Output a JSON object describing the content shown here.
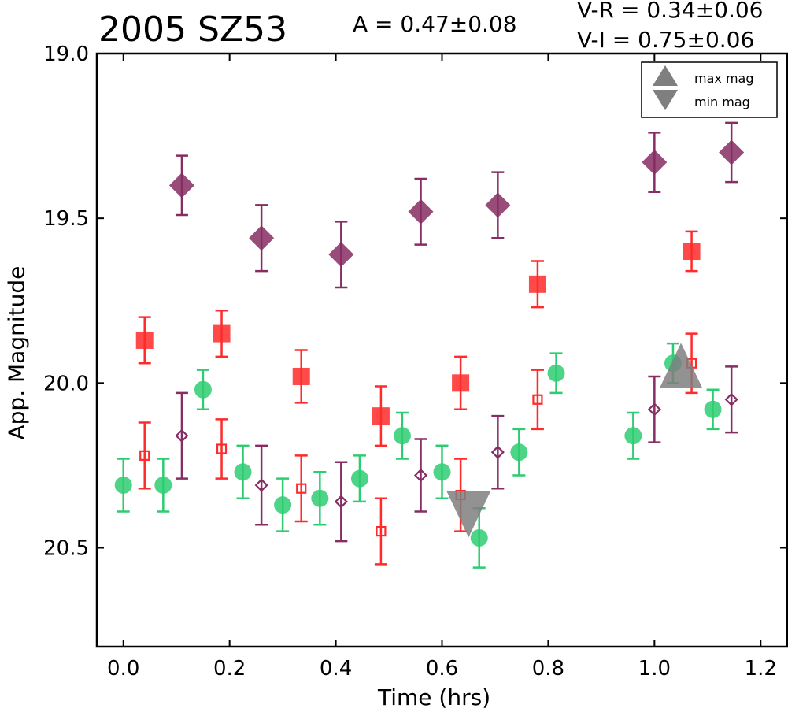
{
  "chart_data": {
    "type": "scatter",
    "title": "2005 SZ53",
    "annotations": {
      "amplitude": "A  = 0.47±0.08",
      "v_r": "V-R = 0.34±0.06",
      "v_i": "V-I  = 0.75±0.06"
    },
    "xlabel": "Time (hrs)",
    "ylabel": "App. Magnitude",
    "xlim": [
      -0.05,
      1.25
    ],
    "ylim": [
      20.8,
      19.0
    ],
    "y_inverted": true,
    "xticks": [
      "0.0",
      "0.2",
      "0.4",
      "0.6",
      "0.8",
      "1.0",
      "1.2"
    ],
    "xtick_values": [
      0.0,
      0.2,
      0.4,
      0.6,
      0.8,
      1.0,
      1.2
    ],
    "yticks": [
      "19.0",
      "19.5",
      "20.0",
      "20.5"
    ],
    "ytick_values": [
      19.0,
      19.5,
      20.0,
      20.5
    ],
    "grid": false,
    "legend_placement": "top-right",
    "legend": [
      {
        "label": "max mag",
        "marker": "triangle-up",
        "color": "#7f7f7f"
      },
      {
        "label": "min mag",
        "marker": "triangle-down",
        "color": "#7f7f7f"
      }
    ],
    "series": [
      {
        "marker": "circle",
        "filled": true,
        "color": "#2ecc71",
        "points": [
          {
            "x": 0.0,
            "y": 20.31,
            "err": 0.08
          },
          {
            "x": 0.075,
            "y": 20.31,
            "err": 0.08
          },
          {
            "x": 0.15,
            "y": 20.02,
            "err": 0.06
          },
          {
            "x": 0.225,
            "y": 20.27,
            "err": 0.08
          },
          {
            "x": 0.3,
            "y": 20.37,
            "err": 0.08
          },
          {
            "x": 0.37,
            "y": 20.35,
            "err": 0.08
          },
          {
            "x": 0.445,
            "y": 20.29,
            "err": 0.07
          },
          {
            "x": 0.525,
            "y": 20.16,
            "err": 0.07
          },
          {
            "x": 0.6,
            "y": 20.27,
            "err": 0.08
          },
          {
            "x": 0.67,
            "y": 20.47,
            "err": 0.09
          },
          {
            "x": 0.745,
            "y": 20.21,
            "err": 0.07
          },
          {
            "x": 0.815,
            "y": 19.97,
            "err": 0.06
          },
          {
            "x": 0.96,
            "y": 20.16,
            "err": 0.07
          },
          {
            "x": 1.035,
            "y": 19.94,
            "err": 0.06
          },
          {
            "x": 1.11,
            "y": 20.08,
            "err": 0.06
          }
        ]
      },
      {
        "marker": "square",
        "filled": true,
        "color": "#ff2a2a",
        "points": [
          {
            "x": 0.04,
            "y": 19.87,
            "err": 0.07
          },
          {
            "x": 0.185,
            "y": 19.85,
            "err": 0.07
          },
          {
            "x": 0.335,
            "y": 19.98,
            "err": 0.08
          },
          {
            "x": 0.485,
            "y": 20.1,
            "err": 0.09
          },
          {
            "x": 0.635,
            "y": 20.0,
            "err": 0.08
          },
          {
            "x": 0.78,
            "y": 19.7,
            "err": 0.07
          },
          {
            "x": 1.07,
            "y": 19.6,
            "err": 0.06
          }
        ]
      },
      {
        "marker": "square",
        "filled": false,
        "color": "#ff2a2a",
        "points": [
          {
            "x": 0.04,
            "y": 20.22,
            "err": 0.1
          },
          {
            "x": 0.185,
            "y": 20.2,
            "err": 0.09
          },
          {
            "x": 0.335,
            "y": 20.32,
            "err": 0.1
          },
          {
            "x": 0.485,
            "y": 20.45,
            "err": 0.1
          },
          {
            "x": 0.635,
            "y": 20.34,
            "err": 0.11
          },
          {
            "x": 0.78,
            "y": 20.05,
            "err": 0.09
          },
          {
            "x": 1.07,
            "y": 19.94,
            "err": 0.09
          }
        ]
      },
      {
        "marker": "diamond",
        "filled": true,
        "color": "#862d63",
        "points": [
          {
            "x": 0.11,
            "y": 19.4,
            "err": 0.09
          },
          {
            "x": 0.26,
            "y": 19.56,
            "err": 0.1
          },
          {
            "x": 0.41,
            "y": 19.61,
            "err": 0.1
          },
          {
            "x": 0.56,
            "y": 19.48,
            "err": 0.1
          },
          {
            "x": 0.705,
            "y": 19.46,
            "err": 0.1
          },
          {
            "x": 1.0,
            "y": 19.33,
            "err": 0.09
          },
          {
            "x": 1.145,
            "y": 19.3,
            "err": 0.09
          }
        ]
      },
      {
        "marker": "diamond",
        "filled": false,
        "color": "#862d63",
        "points": [
          {
            "x": 0.11,
            "y": 20.16,
            "err": 0.13
          },
          {
            "x": 0.26,
            "y": 20.31,
            "err": 0.12
          },
          {
            "x": 0.41,
            "y": 20.36,
            "err": 0.12
          },
          {
            "x": 0.56,
            "y": 20.28,
            "err": 0.11
          },
          {
            "x": 0.705,
            "y": 20.21,
            "err": 0.11
          },
          {
            "x": 1.0,
            "y": 20.08,
            "err": 0.1
          },
          {
            "x": 1.145,
            "y": 20.05,
            "err": 0.1
          }
        ]
      }
    ],
    "extrema": [
      {
        "kind": "max",
        "marker": "triangle-up",
        "x": 1.05,
        "y": 19.95,
        "color": "#7f7f7f"
      },
      {
        "kind": "min",
        "marker": "triangle-down",
        "x": 0.65,
        "y": 20.39,
        "color": "#7f7f7f"
      }
    ]
  }
}
